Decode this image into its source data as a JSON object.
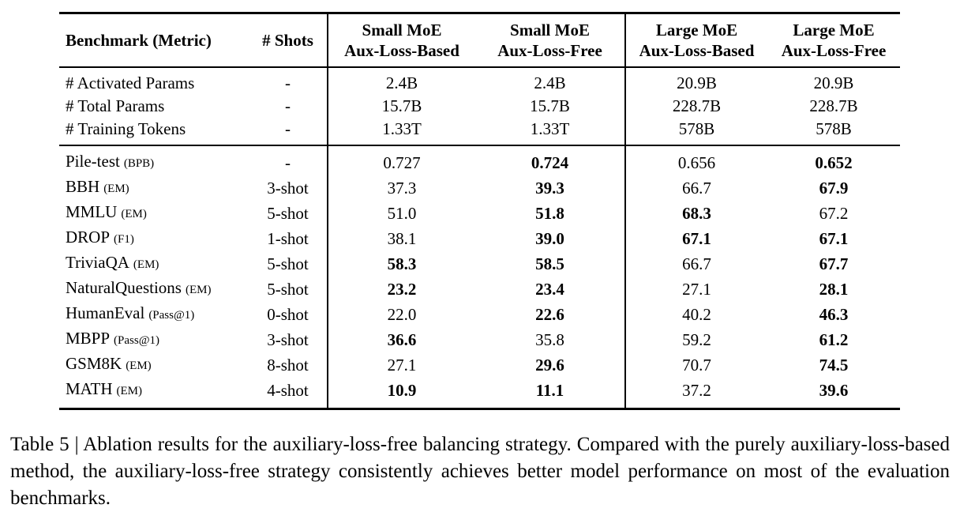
{
  "table": {
    "header": {
      "benchmark": "Benchmark (Metric)",
      "shots": "# Shots",
      "groups": [
        {
          "line1": "Small MoE",
          "line2": "Aux-Loss-Based"
        },
        {
          "line1": "Small MoE",
          "line2": "Aux-Loss-Free"
        },
        {
          "line1": "Large MoE",
          "line2": "Aux-Loss-Based"
        },
        {
          "line1": "Large MoE",
          "line2": "Aux-Loss-Free"
        }
      ]
    },
    "info_rows": [
      {
        "name": "# Activated Params",
        "metric": "",
        "shots": "-",
        "values": [
          "2.4B",
          "2.4B",
          "20.9B",
          "20.9B"
        ],
        "bold": [
          false,
          false,
          false,
          false
        ]
      },
      {
        "name": "# Total Params",
        "metric": "",
        "shots": "-",
        "values": [
          "15.7B",
          "15.7B",
          "228.7B",
          "228.7B"
        ],
        "bold": [
          false,
          false,
          false,
          false
        ]
      },
      {
        "name": "# Training Tokens",
        "metric": "",
        "shots": "-",
        "values": [
          "1.33T",
          "1.33T",
          "578B",
          "578B"
        ],
        "bold": [
          false,
          false,
          false,
          false
        ]
      }
    ],
    "benchmark_rows": [
      {
        "name": "Pile-test",
        "metric": "(BPB)",
        "shots": "-",
        "values": [
          "0.727",
          "0.724",
          "0.656",
          "0.652"
        ],
        "bold": [
          false,
          true,
          false,
          true
        ]
      },
      {
        "name": "BBH",
        "metric": "(EM)",
        "shots": "3-shot",
        "values": [
          "37.3",
          "39.3",
          "66.7",
          "67.9"
        ],
        "bold": [
          false,
          true,
          false,
          true
        ]
      },
      {
        "name": "MMLU",
        "metric": "(EM)",
        "shots": "5-shot",
        "values": [
          "51.0",
          "51.8",
          "68.3",
          "67.2"
        ],
        "bold": [
          false,
          true,
          true,
          false
        ]
      },
      {
        "name": "DROP",
        "metric": "(F1)",
        "shots": "1-shot",
        "values": [
          "38.1",
          "39.0",
          "67.1",
          "67.1"
        ],
        "bold": [
          false,
          true,
          true,
          true
        ]
      },
      {
        "name": "TriviaQA",
        "metric": "(EM)",
        "shots": "5-shot",
        "values": [
          "58.3",
          "58.5",
          "66.7",
          "67.7"
        ],
        "bold": [
          true,
          true,
          false,
          true
        ]
      },
      {
        "name": "NaturalQuestions",
        "metric": "(EM)",
        "shots": "5-shot",
        "values": [
          "23.2",
          "23.4",
          "27.1",
          "28.1"
        ],
        "bold": [
          true,
          true,
          false,
          true
        ]
      },
      {
        "name": "HumanEval",
        "metric": "(Pass@1)",
        "shots": "0-shot",
        "values": [
          "22.0",
          "22.6",
          "40.2",
          "46.3"
        ],
        "bold": [
          false,
          true,
          false,
          true
        ]
      },
      {
        "name": "MBPP",
        "metric": "(Pass@1)",
        "shots": "3-shot",
        "values": [
          "36.6",
          "35.8",
          "59.2",
          "61.2"
        ],
        "bold": [
          true,
          false,
          false,
          true
        ]
      },
      {
        "name": "GSM8K",
        "metric": "(EM)",
        "shots": "8-shot",
        "values": [
          "27.1",
          "29.6",
          "70.7",
          "74.5"
        ],
        "bold": [
          false,
          true,
          false,
          true
        ]
      },
      {
        "name": "MATH",
        "metric": "(EM)",
        "shots": "4-shot",
        "values": [
          "10.9",
          "11.1",
          "37.2",
          "39.6"
        ],
        "bold": [
          true,
          true,
          false,
          true
        ]
      }
    ]
  },
  "caption": {
    "text": "Table 5 | Ablation results for the auxiliary-loss-free balancing strategy. Compared with the purely auxiliary-loss-based method, the auxiliary-loss-free strategy consistently achieves better model performance on most of the evaluation benchmarks."
  }
}
